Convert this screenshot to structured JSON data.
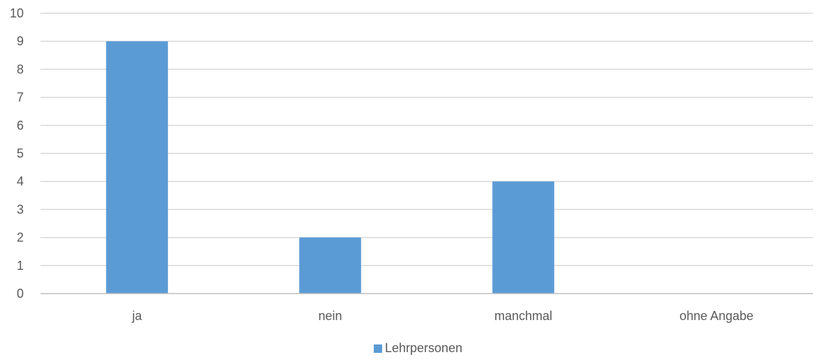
{
  "chart_data": {
    "type": "bar",
    "categories": [
      "ja",
      "nein",
      "manchmal",
      "ohne Angabe"
    ],
    "series": [
      {
        "name": "Lehrpersonen",
        "values": [
          9,
          2,
          4,
          0
        ],
        "color": "#5B9BD5"
      }
    ],
    "ylim": [
      0,
      10
    ],
    "yticks": [
      0,
      1,
      2,
      3,
      4,
      5,
      6,
      7,
      8,
      9,
      10
    ],
    "grid": true,
    "grid_color": "#D9D9D9",
    "axis_color": "#BFBFBF",
    "text_color": "#595959",
    "legend_position": "bottom"
  }
}
